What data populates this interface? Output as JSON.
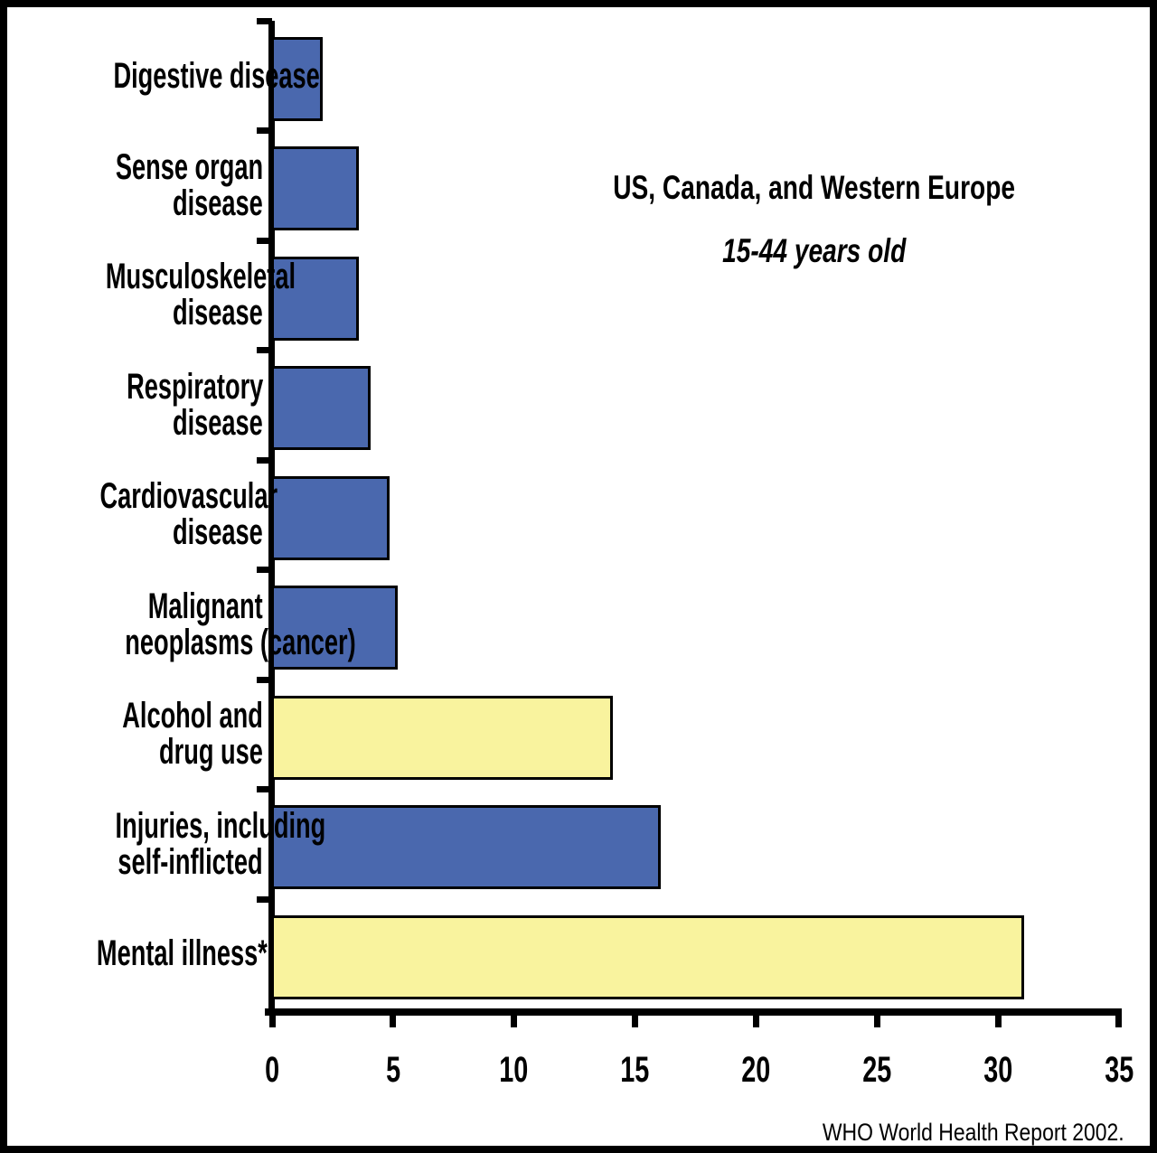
{
  "page": {
    "title": "US, Canada, and Western Europe",
    "subtitle": "15-44 years old",
    "source": "WHO World Health Report 2002."
  },
  "colors": {
    "bar_blue": "#4A68AE",
    "bar_yellow": "#F9F39E",
    "axis_black": "#000000",
    "background": "#FFFFFF"
  },
  "chart_data": {
    "type": "bar",
    "orientation": "horizontal",
    "title": "US, Canada, and Western Europe",
    "subtitle": "15-44 years old",
    "source_note": "WHO World Health Report 2002.",
    "xlabel": "",
    "ylabel": "",
    "xlim": [
      0,
      35
    ],
    "x_ticks": [
      0,
      5,
      10,
      15,
      20,
      25,
      30,
      35
    ],
    "grid": false,
    "legend": false,
    "categories": [
      "Digestive disease",
      "Sense organ disease",
      "Musculoskeletal disease",
      "Respiratory disease",
      "Cardiovascular disease",
      "Malignant neoplasms (cancer)",
      "Alcohol and drug use",
      "Injuries, including self-inflicted",
      "Mental illness*"
    ],
    "label_lines": [
      [
        "Digestive disease"
      ],
      [
        "Sense organ",
        "disease"
      ],
      [
        "Musculoskeletal",
        "disease"
      ],
      [
        "Respiratory",
        "disease"
      ],
      [
        "Cardiovascular",
        "disease"
      ],
      [
        "Malignant",
        "neoplasms (cancer)"
      ],
      [
        "Alcohol and",
        "drug use"
      ],
      [
        "Injuries, including",
        "self-inflicted"
      ],
      [
        "Mental illness*"
      ]
    ],
    "values": [
      2,
      3.5,
      3.5,
      4,
      4.8,
      5.1,
      14,
      16,
      31
    ],
    "bar_color_keys": [
      "bar_blue",
      "bar_blue",
      "bar_blue",
      "bar_blue",
      "bar_blue",
      "bar_blue",
      "bar_yellow",
      "bar_blue",
      "bar_yellow"
    ]
  }
}
